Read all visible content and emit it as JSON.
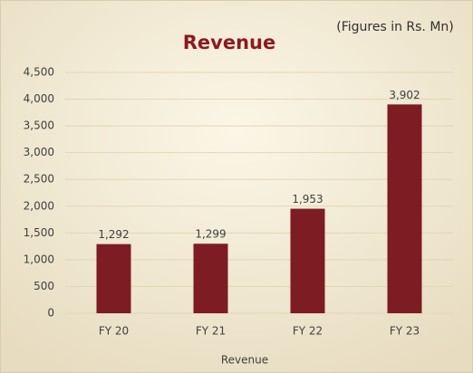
{
  "chart_data": {
    "type": "bar",
    "title": "Revenue",
    "subtitle": "(Figures in Rs. Mn)",
    "x_label": "Revenue",
    "categories": [
      "FY 20",
      "FY 21",
      "FY 22",
      "FY 23"
    ],
    "values": [
      1292,
      1299,
      1953,
      3902
    ],
    "value_labels": [
      "1,292",
      "1,299",
      "1,953",
      "3,902"
    ],
    "color": "#7d1c22",
    "ylim": [
      0,
      4500
    ],
    "yticks": [
      0,
      500,
      {
        "value": 1000,
        "label": "1,000"
      },
      {
        "value": 1500,
        "label": "1,500"
      },
      {
        "value": 2000,
        "label": "2,000"
      },
      {
        "value": 2500,
        "label": "2,500"
      },
      {
        "value": 3000,
        "label": "3,000"
      },
      {
        "value": 3500,
        "label": "3,500"
      },
      {
        "value": 4000,
        "label": "4,000"
      },
      {
        "value": 4500,
        "label": "4,500"
      }
    ],
    "grid": true
  }
}
